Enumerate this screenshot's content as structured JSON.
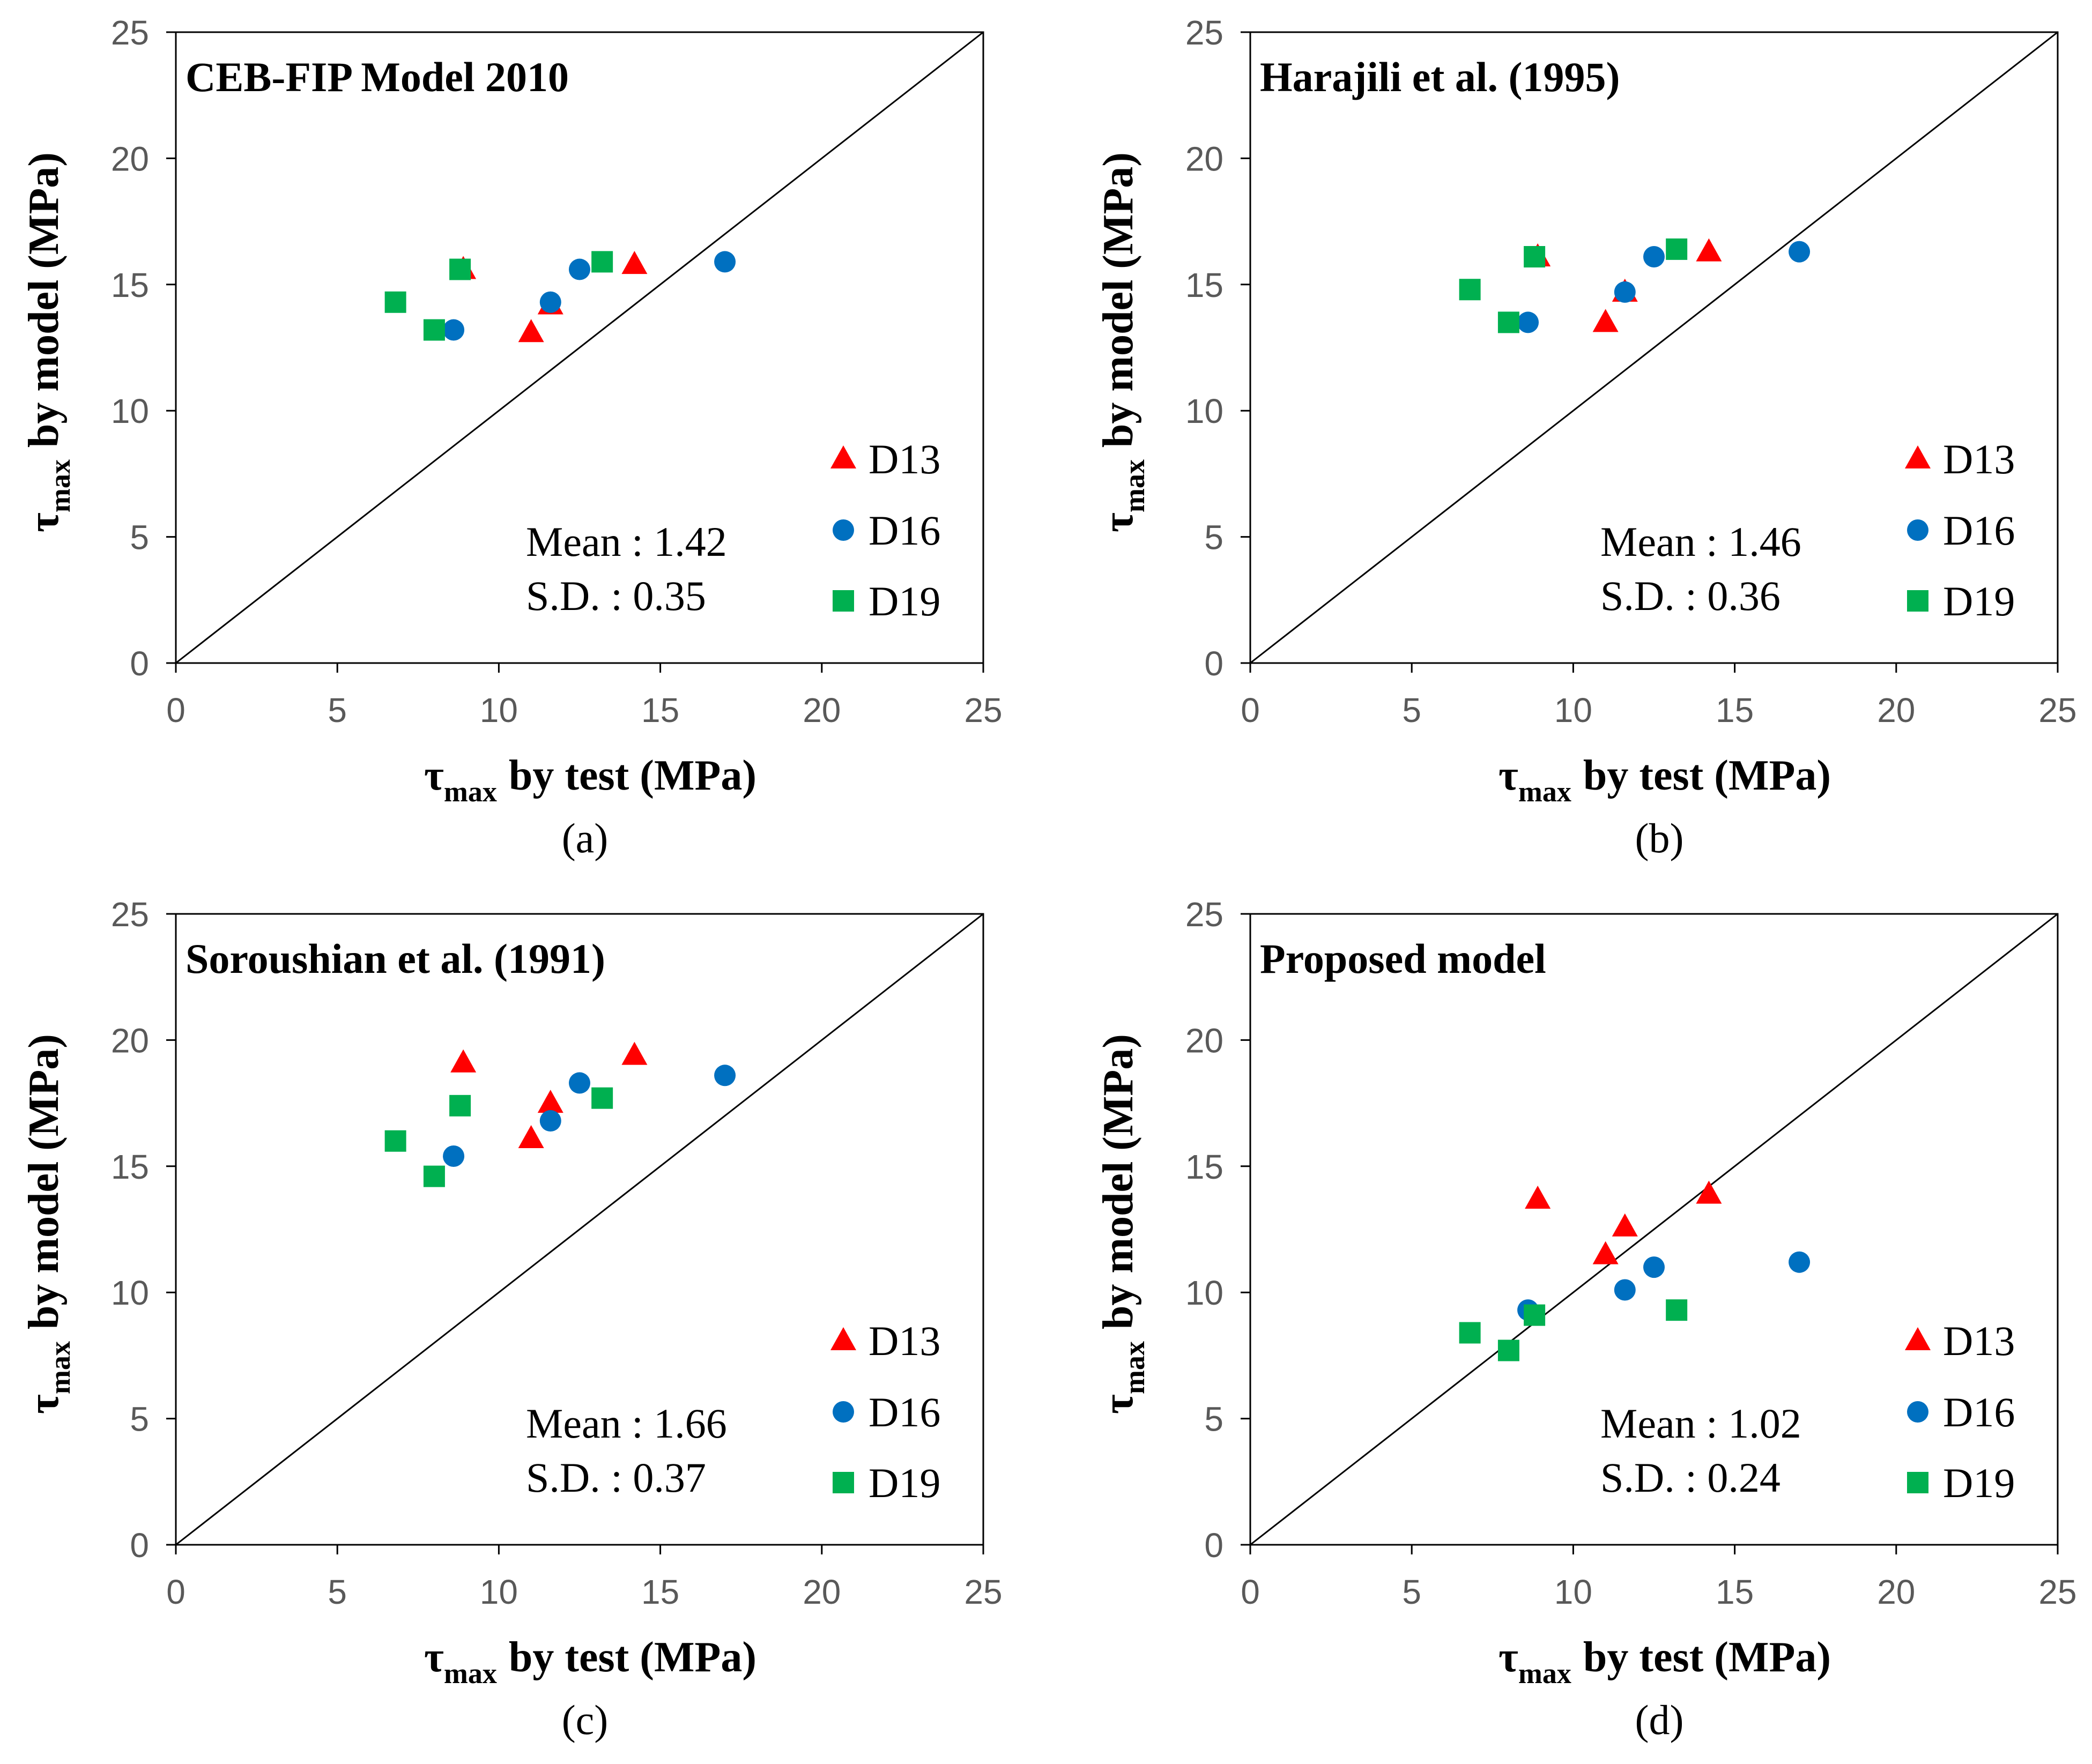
{
  "chart_data": [
    {
      "type": "scatter",
      "panel_label": "(a)",
      "title": "CEB-FIP Model 2010",
      "xlabel": {
        "symbol": "τ",
        "sub": "max",
        "rest": "by test (MPa)"
      },
      "ylabel": {
        "symbol": "τ",
        "sub": "max",
        "rest": "by model (MPa)"
      },
      "xlim": [
        0,
        25
      ],
      "ylim": [
        0,
        25
      ],
      "xticks": [
        "0",
        "5",
        "10",
        "15",
        "20",
        "25"
      ],
      "yticks": [
        "0",
        "5",
        "10",
        "15",
        "20",
        "25"
      ],
      "reference_line": "y = x",
      "stats": {
        "mean": "Mean : 1.42",
        "sd": "S.D. : 0.35"
      },
      "legend_position": "bottom-right",
      "series": [
        {
          "name": "D13",
          "marker": "triangle",
          "color": "#ff0000",
          "points": [
            [
              8.9,
              15.6
            ],
            [
              11.0,
              13.1
            ],
            [
              11.6,
              14.2
            ],
            [
              14.2,
              15.8
            ]
          ]
        },
        {
          "name": "D16",
          "marker": "circle",
          "color": "#0070c0",
          "points": [
            [
              8.6,
              13.2
            ],
            [
              11.6,
              14.3
            ],
            [
              12.5,
              15.6
            ],
            [
              17.0,
              15.9
            ]
          ]
        },
        {
          "name": "D19",
          "marker": "square",
          "color": "#00b050",
          "points": [
            [
              6.8,
              14.3
            ],
            [
              8.0,
              13.2
            ],
            [
              8.8,
              15.6
            ],
            [
              13.2,
              15.9
            ]
          ]
        }
      ]
    },
    {
      "type": "scatter",
      "panel_label": "(b)",
      "title": "Harajili et al. (1995)",
      "xlabel": {
        "symbol": "τ",
        "sub": "max",
        "rest": "by test (MPa)"
      },
      "ylabel": {
        "symbol": "τ",
        "sub": "max",
        "rest": "by model (MPa)"
      },
      "xlim": [
        0,
        25
      ],
      "ylim": [
        0,
        25
      ],
      "xticks": [
        "0",
        "5",
        "10",
        "15",
        "20",
        "25"
      ],
      "yticks": [
        "0",
        "5",
        "10",
        "15",
        "20",
        "25"
      ],
      "reference_line": "y = x",
      "stats": {
        "mean": "Mean : 1.46",
        "sd": "S.D. : 0.36"
      },
      "legend_position": "bottom-right",
      "series": [
        {
          "name": "D13",
          "marker": "triangle",
          "color": "#ff0000",
          "points": [
            [
              8.9,
              16.1
            ],
            [
              11.0,
              13.5
            ],
            [
              11.6,
              14.7
            ],
            [
              14.2,
              16.3
            ]
          ]
        },
        {
          "name": "D16",
          "marker": "circle",
          "color": "#0070c0",
          "points": [
            [
              8.6,
              13.5
            ],
            [
              11.6,
              14.7
            ],
            [
              12.5,
              16.1
            ],
            [
              17.0,
              16.3
            ]
          ]
        },
        {
          "name": "D19",
          "marker": "square",
          "color": "#00b050",
          "points": [
            [
              6.8,
              14.8
            ],
            [
              8.0,
              13.5
            ],
            [
              8.8,
              16.1
            ],
            [
              13.2,
              16.4
            ]
          ]
        }
      ]
    },
    {
      "type": "scatter",
      "panel_label": "(c)",
      "title": "Soroushian et al. (1991)",
      "xlabel": {
        "symbol": "τ",
        "sub": "max",
        "rest": "by test (MPa)"
      },
      "ylabel": {
        "symbol": "τ",
        "sub": "max",
        "rest": "by model (MPa)"
      },
      "xlim": [
        0,
        25
      ],
      "ylim": [
        0,
        25
      ],
      "xticks": [
        "0",
        "5",
        "10",
        "15",
        "20",
        "25"
      ],
      "yticks": [
        "0",
        "5",
        "10",
        "15",
        "20",
        "25"
      ],
      "reference_line": "y = x",
      "stats": {
        "mean": "Mean : 1.66",
        "sd": "S.D. : 0.37"
      },
      "legend_position": "bottom-right",
      "series": [
        {
          "name": "D13",
          "marker": "triangle",
          "color": "#ff0000",
          "points": [
            [
              8.9,
              19.1
            ],
            [
              11.0,
              16.1
            ],
            [
              11.6,
              17.5
            ],
            [
              14.2,
              19.4
            ]
          ]
        },
        {
          "name": "D16",
          "marker": "circle",
          "color": "#0070c0",
          "points": [
            [
              8.6,
              15.4
            ],
            [
              11.6,
              16.8
            ],
            [
              12.5,
              18.3
            ],
            [
              17.0,
              18.6
            ]
          ]
        },
        {
          "name": "D19",
          "marker": "square",
          "color": "#00b050",
          "points": [
            [
              6.8,
              16.0
            ],
            [
              8.0,
              14.6
            ],
            [
              8.8,
              17.4
            ],
            [
              13.2,
              17.7
            ]
          ]
        }
      ]
    },
    {
      "type": "scatter",
      "panel_label": "(d)",
      "title": "Proposed model",
      "xlabel": {
        "symbol": "τ",
        "sub": "max",
        "rest": "by test (MPa)"
      },
      "ylabel": {
        "symbol": "τ",
        "sub": "max",
        "rest": "by model (MPa)"
      },
      "xlim": [
        0,
        25
      ],
      "ylim": [
        0,
        25
      ],
      "xticks": [
        "0",
        "5",
        "10",
        "15",
        "20",
        "25"
      ],
      "yticks": [
        "0",
        "5",
        "10",
        "15",
        "20",
        "25"
      ],
      "reference_line": "y = x",
      "stats": {
        "mean": "Mean : 1.02",
        "sd": "S.D. : 0.24"
      },
      "legend_position": "bottom-right",
      "series": [
        {
          "name": "D13",
          "marker": "triangle",
          "color": "#ff0000",
          "points": [
            [
              8.9,
              13.7
            ],
            [
              11.0,
              11.5
            ],
            [
              11.6,
              12.6
            ],
            [
              14.2,
              13.9
            ]
          ]
        },
        {
          "name": "D16",
          "marker": "circle",
          "color": "#0070c0",
          "points": [
            [
              8.6,
              9.3
            ],
            [
              11.6,
              10.1
            ],
            [
              12.5,
              11.0
            ],
            [
              17.0,
              11.2
            ]
          ]
        },
        {
          "name": "D19",
          "marker": "square",
          "color": "#00b050",
          "points": [
            [
              6.8,
              8.4
            ],
            [
              8.0,
              7.7
            ],
            [
              8.8,
              9.1
            ],
            [
              13.2,
              9.3
            ]
          ]
        }
      ]
    }
  ]
}
